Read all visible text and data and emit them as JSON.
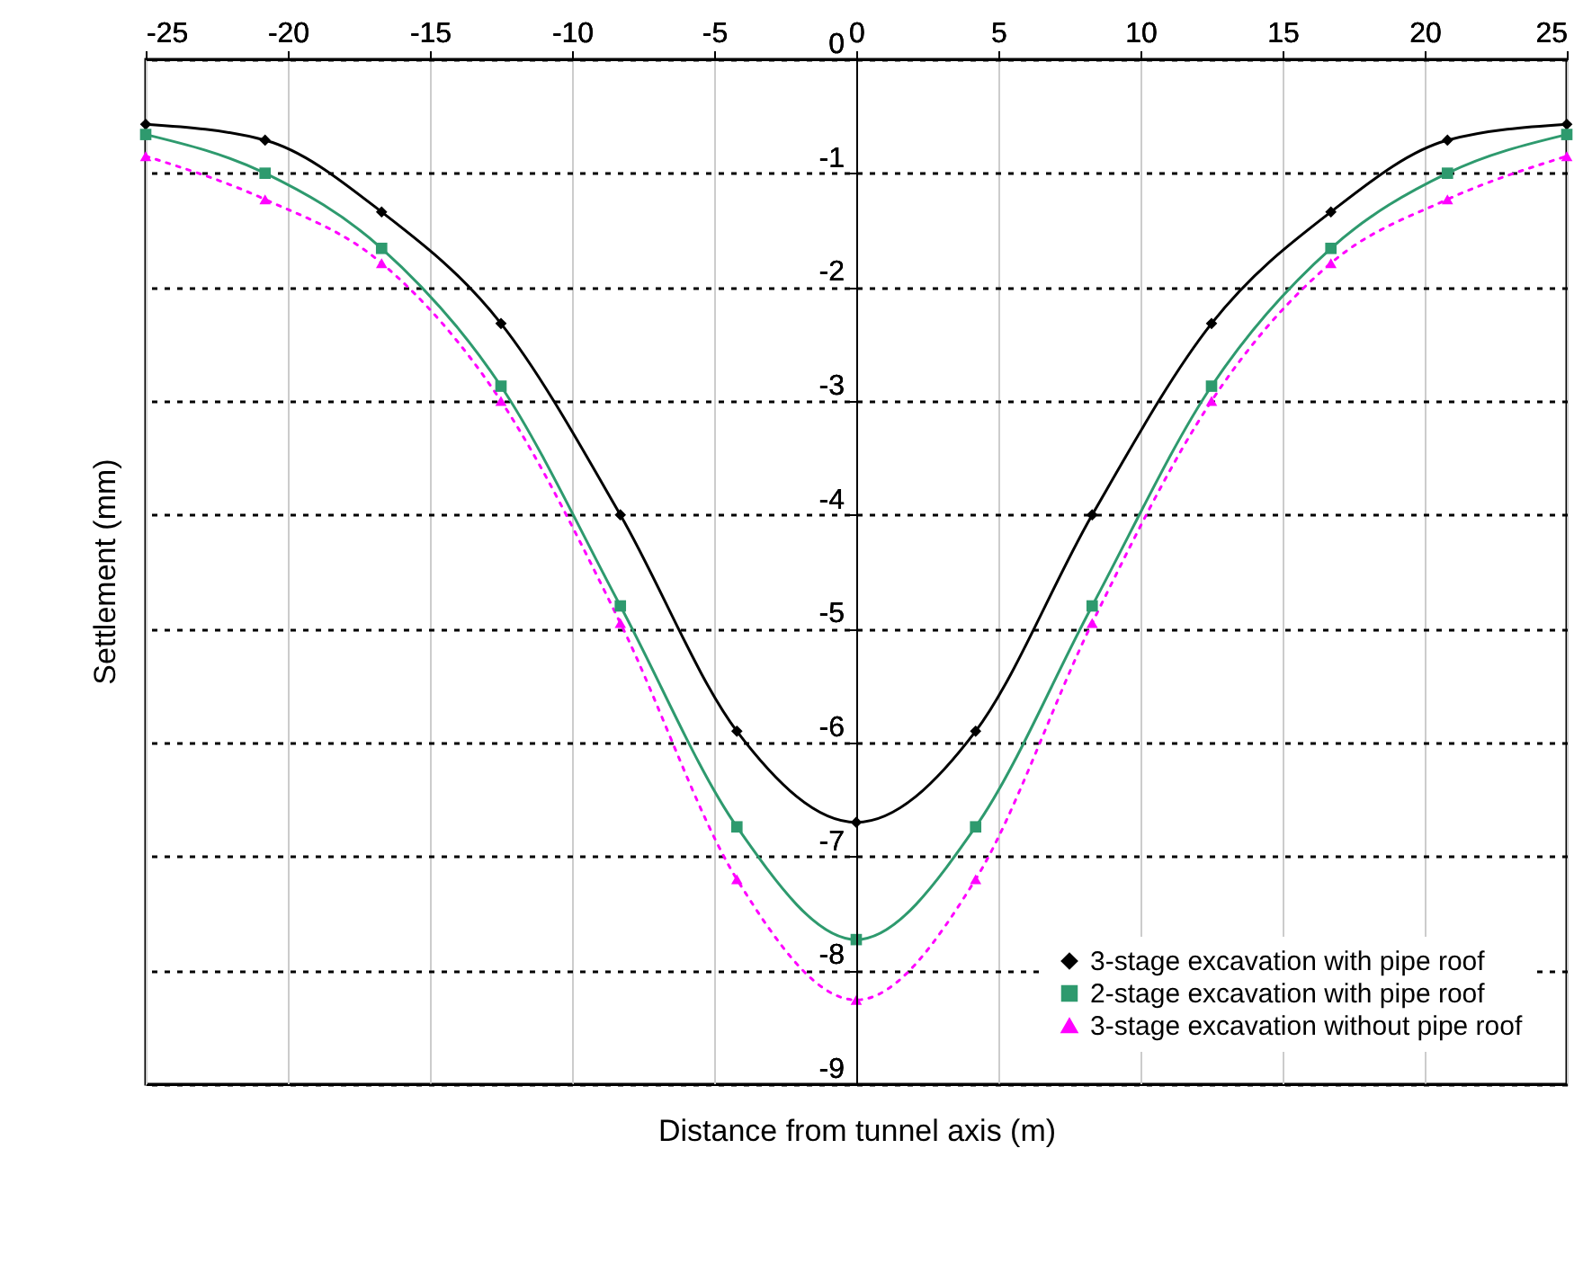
{
  "chart_data": {
    "type": "line",
    "xlabel": "Distance from tunnel axis (m)",
    "ylabel": "Settlement (mm)",
    "x": [
      -25,
      -20.8,
      -16.7,
      -12.5,
      -8.3,
      -4.2,
      0,
      4.2,
      8.3,
      12.5,
      16.7,
      20.8,
      25
    ],
    "series": [
      {
        "name": "3-stage excavation with pipe roof",
        "color": "#000000",
        "marker": "diamond",
        "line_style": "solid",
        "values": [
          -0.57,
          -0.71,
          -1.34,
          -2.32,
          -4.0,
          -5.9,
          -6.7,
          -5.9,
          -4.0,
          -2.32,
          -1.34,
          -0.71,
          -0.57
        ]
      },
      {
        "name": "2-stage excavation with pipe roof",
        "color": "#2e9a6e",
        "marker": "square",
        "line_style": "solid",
        "values": [
          -0.66,
          -1.0,
          -1.66,
          -2.87,
          -4.8,
          -6.74,
          -7.73,
          -6.74,
          -4.8,
          -2.87,
          -1.66,
          -1.0,
          -0.66
        ]
      },
      {
        "name": "3-stage excavation without pipe roof",
        "color": "#ff00ff",
        "marker": "triangle",
        "line_style": "dotted",
        "values": [
          -0.85,
          -1.23,
          -1.79,
          -3.0,
          -4.95,
          -7.2,
          -8.26,
          -7.2,
          -4.95,
          -3.0,
          -1.79,
          -1.23,
          -0.85
        ]
      }
    ],
    "xlim": [
      -25,
      25
    ],
    "xticks": [
      -25,
      -20,
      -15,
      -10,
      -5,
      0,
      5,
      10,
      15,
      20,
      25
    ],
    "ylim": [
      -9,
      0
    ],
    "yticks": [
      0,
      -1,
      -2,
      -3,
      -4,
      -5,
      -6,
      -7,
      -8,
      -9
    ],
    "grid": true,
    "legend": "bottom right"
  }
}
